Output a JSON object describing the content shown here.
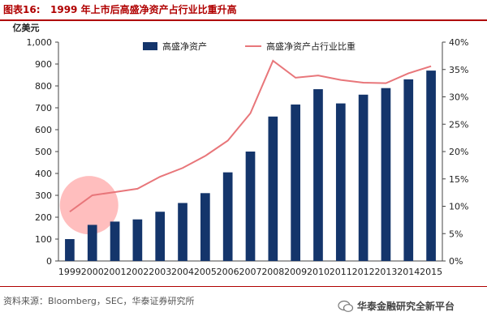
{
  "header": {
    "figure_label": "图表16:",
    "title": "1999 年上市后高盛净资产占行业比重升高"
  },
  "source": "资料来源：Bloomberg，SEC，华泰证券研究所",
  "watermark": {
    "text": "华泰金融研究全新平台",
    "icon": "wechat-icon"
  },
  "chart_data": {
    "type": "bar",
    "categories": [
      "1999",
      "2000",
      "2001",
      "2002",
      "2003",
      "2004",
      "2005",
      "2006",
      "2007",
      "2008",
      "2009",
      "2010",
      "2011",
      "2012",
      "2013",
      "2014",
      "2015"
    ],
    "series": [
      {
        "name": "高盛净资产",
        "type": "bar",
        "axis": "left",
        "color": "#14356b",
        "values": [
          100,
          165,
          180,
          190,
          225,
          265,
          310,
          405,
          500,
          660,
          715,
          785,
          720,
          760,
          790,
          830,
          870
        ]
      },
      {
        "name": "高盛净资产占行业比重",
        "type": "line",
        "axis": "right",
        "color": "#e8767a",
        "values": [
          9.0,
          12.0,
          12.6,
          13.2,
          15.4,
          17.0,
          19.2,
          22.0,
          27.0,
          36.6,
          33.5,
          33.9,
          33.1,
          32.6,
          32.5,
          34.3,
          35.6
        ]
      }
    ],
    "y_left": {
      "label": "亿美元",
      "min": 0,
      "max": 1000,
      "ticks": [
        "0",
        "100",
        "200",
        "300",
        "400",
        "500",
        "600",
        "700",
        "800",
        "900",
        "1,000"
      ]
    },
    "y_right": {
      "min": 0,
      "max": 40,
      "ticks": [
        "0%",
        "5%",
        "10%",
        "15%",
        "20%",
        "25%",
        "30%",
        "35%",
        "40%"
      ]
    },
    "legend_position": "top",
    "highlight": {
      "shape": "circle",
      "color": "#ffb3b3",
      "center_category": "2000",
      "center_value_left": 255
    },
    "grid": false
  }
}
